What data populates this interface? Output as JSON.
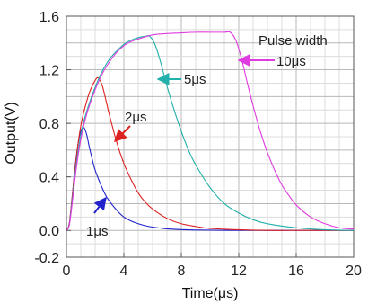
{
  "chart_data": {
    "type": "line",
    "title": "",
    "xlabel": "Time(μs)",
    "ylabel": "Output(V)",
    "xlim": [
      0,
      20
    ],
    "ylim": [
      -0.2,
      1.6
    ],
    "xticks": [
      0,
      4,
      8,
      12,
      16,
      20
    ],
    "yticks": [
      -0.2,
      0.0,
      0.4,
      0.8,
      1.2,
      1.6
    ],
    "xtick_labels": [
      "0",
      "4",
      "8",
      "12",
      "16",
      "20"
    ],
    "ytick_labels": [
      "-0.2",
      "0.0",
      "0.4",
      "0.8",
      "1.2",
      "1.6"
    ],
    "grid": true,
    "series": [
      {
        "name": "1μs",
        "color": "#2222cc",
        "x": [
          0,
          0.2,
          0.4,
          0.6,
          0.8,
          1.0,
          1.2,
          1.4,
          1.6,
          1.8,
          2.0,
          2.4,
          2.8,
          3.2,
          3.6,
          4.0,
          4.5,
          5.0,
          5.5,
          6.0,
          7.0,
          8.0,
          9.0,
          10.0,
          12.0,
          14.0,
          16.0,
          18.0,
          20.0
        ],
        "y": [
          0,
          0.05,
          0.25,
          0.47,
          0.64,
          0.74,
          0.77,
          0.72,
          0.62,
          0.53,
          0.45,
          0.34,
          0.25,
          0.19,
          0.14,
          0.1,
          0.07,
          0.05,
          0.035,
          0.025,
          0.012,
          0.006,
          0.003,
          0.002,
          0.0,
          0.0,
          0.0,
          0.0,
          0.0
        ]
      },
      {
        "name": "2μs",
        "color": "#dd2222",
        "x": [
          0,
          0.2,
          0.4,
          0.6,
          0.8,
          1.0,
          1.2,
          1.4,
          1.6,
          1.8,
          2.0,
          2.2,
          2.5,
          2.8,
          3.0,
          3.5,
          4.0,
          4.5,
          5.0,
          5.5,
          6.0,
          7.0,
          8.0,
          9.0,
          10.0,
          12.0,
          14.0,
          16.0,
          18.0,
          20.0
        ],
        "y": [
          0,
          0.05,
          0.25,
          0.46,
          0.64,
          0.78,
          0.88,
          0.96,
          1.03,
          1.08,
          1.12,
          1.14,
          1.08,
          0.95,
          0.86,
          0.66,
          0.5,
          0.38,
          0.28,
          0.21,
          0.16,
          0.09,
          0.05,
          0.03,
          0.015,
          0.005,
          0.0,
          0.0,
          0.0,
          0.0
        ]
      },
      {
        "name": "5μs",
        "color": "#22b0aa",
        "x": [
          0,
          0.2,
          0.4,
          0.6,
          0.8,
          1.0,
          1.2,
          1.5,
          2.0,
          2.5,
          3.0,
          3.5,
          4.0,
          4.5,
          5.0,
          5.5,
          5.8,
          6.2,
          6.6,
          7.0,
          7.5,
          8.0,
          8.5,
          9.0,
          10.0,
          11.0,
          12.0,
          13.0,
          14.0,
          16.0,
          18.0,
          20.0
        ],
        "y": [
          0,
          0.04,
          0.22,
          0.42,
          0.58,
          0.71,
          0.81,
          0.92,
          1.07,
          1.19,
          1.28,
          1.34,
          1.39,
          1.42,
          1.44,
          1.45,
          1.45,
          1.38,
          1.24,
          1.08,
          0.9,
          0.74,
          0.6,
          0.49,
          0.32,
          0.2,
          0.13,
          0.08,
          0.05,
          0.02,
          0.005,
          0.0
        ]
      },
      {
        "name": "10μs",
        "color": "#e03be0",
        "x": [
          0,
          0.2,
          0.4,
          0.6,
          0.8,
          1.0,
          1.2,
          1.5,
          2.0,
          2.5,
          3.0,
          3.5,
          4.0,
          4.5,
          5.0,
          6.0,
          7.0,
          8.0,
          9.0,
          10.0,
          11.0,
          11.4,
          11.8,
          12.2,
          12.6,
          13.0,
          13.5,
          14.0,
          14.5,
          15.0,
          15.5,
          16.0,
          17.0,
          18.0,
          19.0,
          20.0
        ],
        "y": [
          0,
          0.04,
          0.2,
          0.39,
          0.55,
          0.68,
          0.78,
          0.9,
          1.05,
          1.17,
          1.26,
          1.33,
          1.38,
          1.41,
          1.43,
          1.46,
          1.47,
          1.475,
          1.48,
          1.48,
          1.48,
          1.48,
          1.42,
          1.28,
          1.1,
          0.93,
          0.74,
          0.58,
          0.45,
          0.34,
          0.26,
          0.19,
          0.1,
          0.05,
          0.02,
          0.01
        ]
      }
    ],
    "annotations": [
      {
        "text": "Pulse width",
        "color": "#222222"
      },
      {
        "text": "10μs",
        "color": "#222222",
        "arrow_color": "#e03be0"
      },
      {
        "text": "5μs",
        "color": "#222222",
        "arrow_color": "#22b0aa"
      },
      {
        "text": "2μs",
        "color": "#222222",
        "arrow_color": "#dd2222"
      },
      {
        "text": "1μs",
        "color": "#222222",
        "arrow_color": "#2222cc"
      }
    ]
  }
}
